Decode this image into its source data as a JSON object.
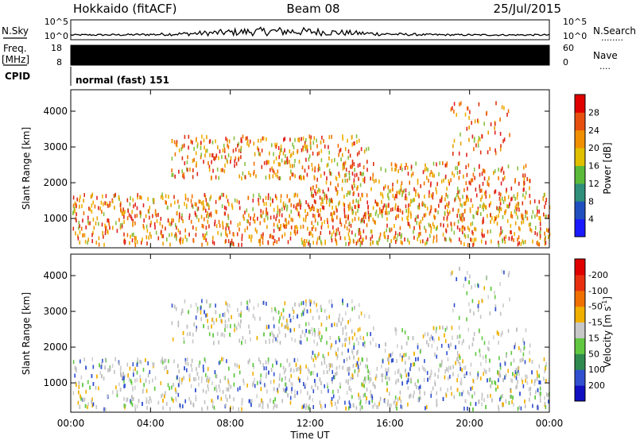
{
  "header": {
    "title": "Hokkaido (fitACF)",
    "beam": "Beam 08",
    "date": "25/Jul/2015"
  },
  "nsky_panel": {
    "left_label": "N.Sky",
    "right_label": "N.Search",
    "right_dots": "........",
    "tick_top": "10^5",
    "tick_bottom": "10^0"
  },
  "freq_panel": {
    "left_label_line1": "Freq.",
    "left_label_line2": "[MHz]",
    "tick_top": "18",
    "tick_bottom": "8",
    "right_label": "Nave",
    "right_dots": "....",
    "right_tick_top": "60",
    "right_tick_bottom": "0",
    "fill_color": "#000000"
  },
  "cpid_panel": {
    "label": "CPID",
    "text": "normal (fast) 151"
  },
  "chart_data": [
    {
      "type": "heatmap",
      "name": "power",
      "ylabel": "Slant Range [km]",
      "ylim": [
        180,
        4600
      ],
      "yticks": [
        1000,
        2000,
        3000,
        4000
      ],
      "x_hours": [
        0,
        24
      ],
      "colorbar": {
        "label": "Power [dB]",
        "ticks": [
          "4",
          "8",
          "12",
          "16",
          "20",
          "24",
          "28"
        ],
        "colors": [
          "#1a1aff",
          "#2050c0",
          "#2f8f7a",
          "#5cba3a",
          "#e0c000",
          "#f09000",
          "#e85010",
          "#e00000"
        ]
      }
    },
    {
      "type": "heatmap",
      "name": "velocity",
      "ylabel": "Slant Range [km]",
      "ylim": [
        180,
        4600
      ],
      "yticks": [
        1000,
        2000,
        3000,
        4000
      ],
      "x_hours": [
        0,
        24
      ],
      "xlabel": "Time UT",
      "xticks": [
        "00:00",
        "04:00",
        "08:00",
        "12:00",
        "16:00",
        "20:00",
        "00:00"
      ],
      "colorbar": {
        "label": "Velocity [m s",
        "label_sup": "-1",
        "label_close": "]",
        "ticks": [
          "200",
          "100",
          "50",
          "15",
          "-15",
          "-50",
          "-100",
          "-200"
        ],
        "colors": [
          "#1010c0",
          "#3050d0",
          "#2e8a4e",
          "#60c840",
          "#c8c8c8",
          "#f0b000",
          "#f07000",
          "#e83010",
          "#e00000"
        ]
      }
    }
  ]
}
